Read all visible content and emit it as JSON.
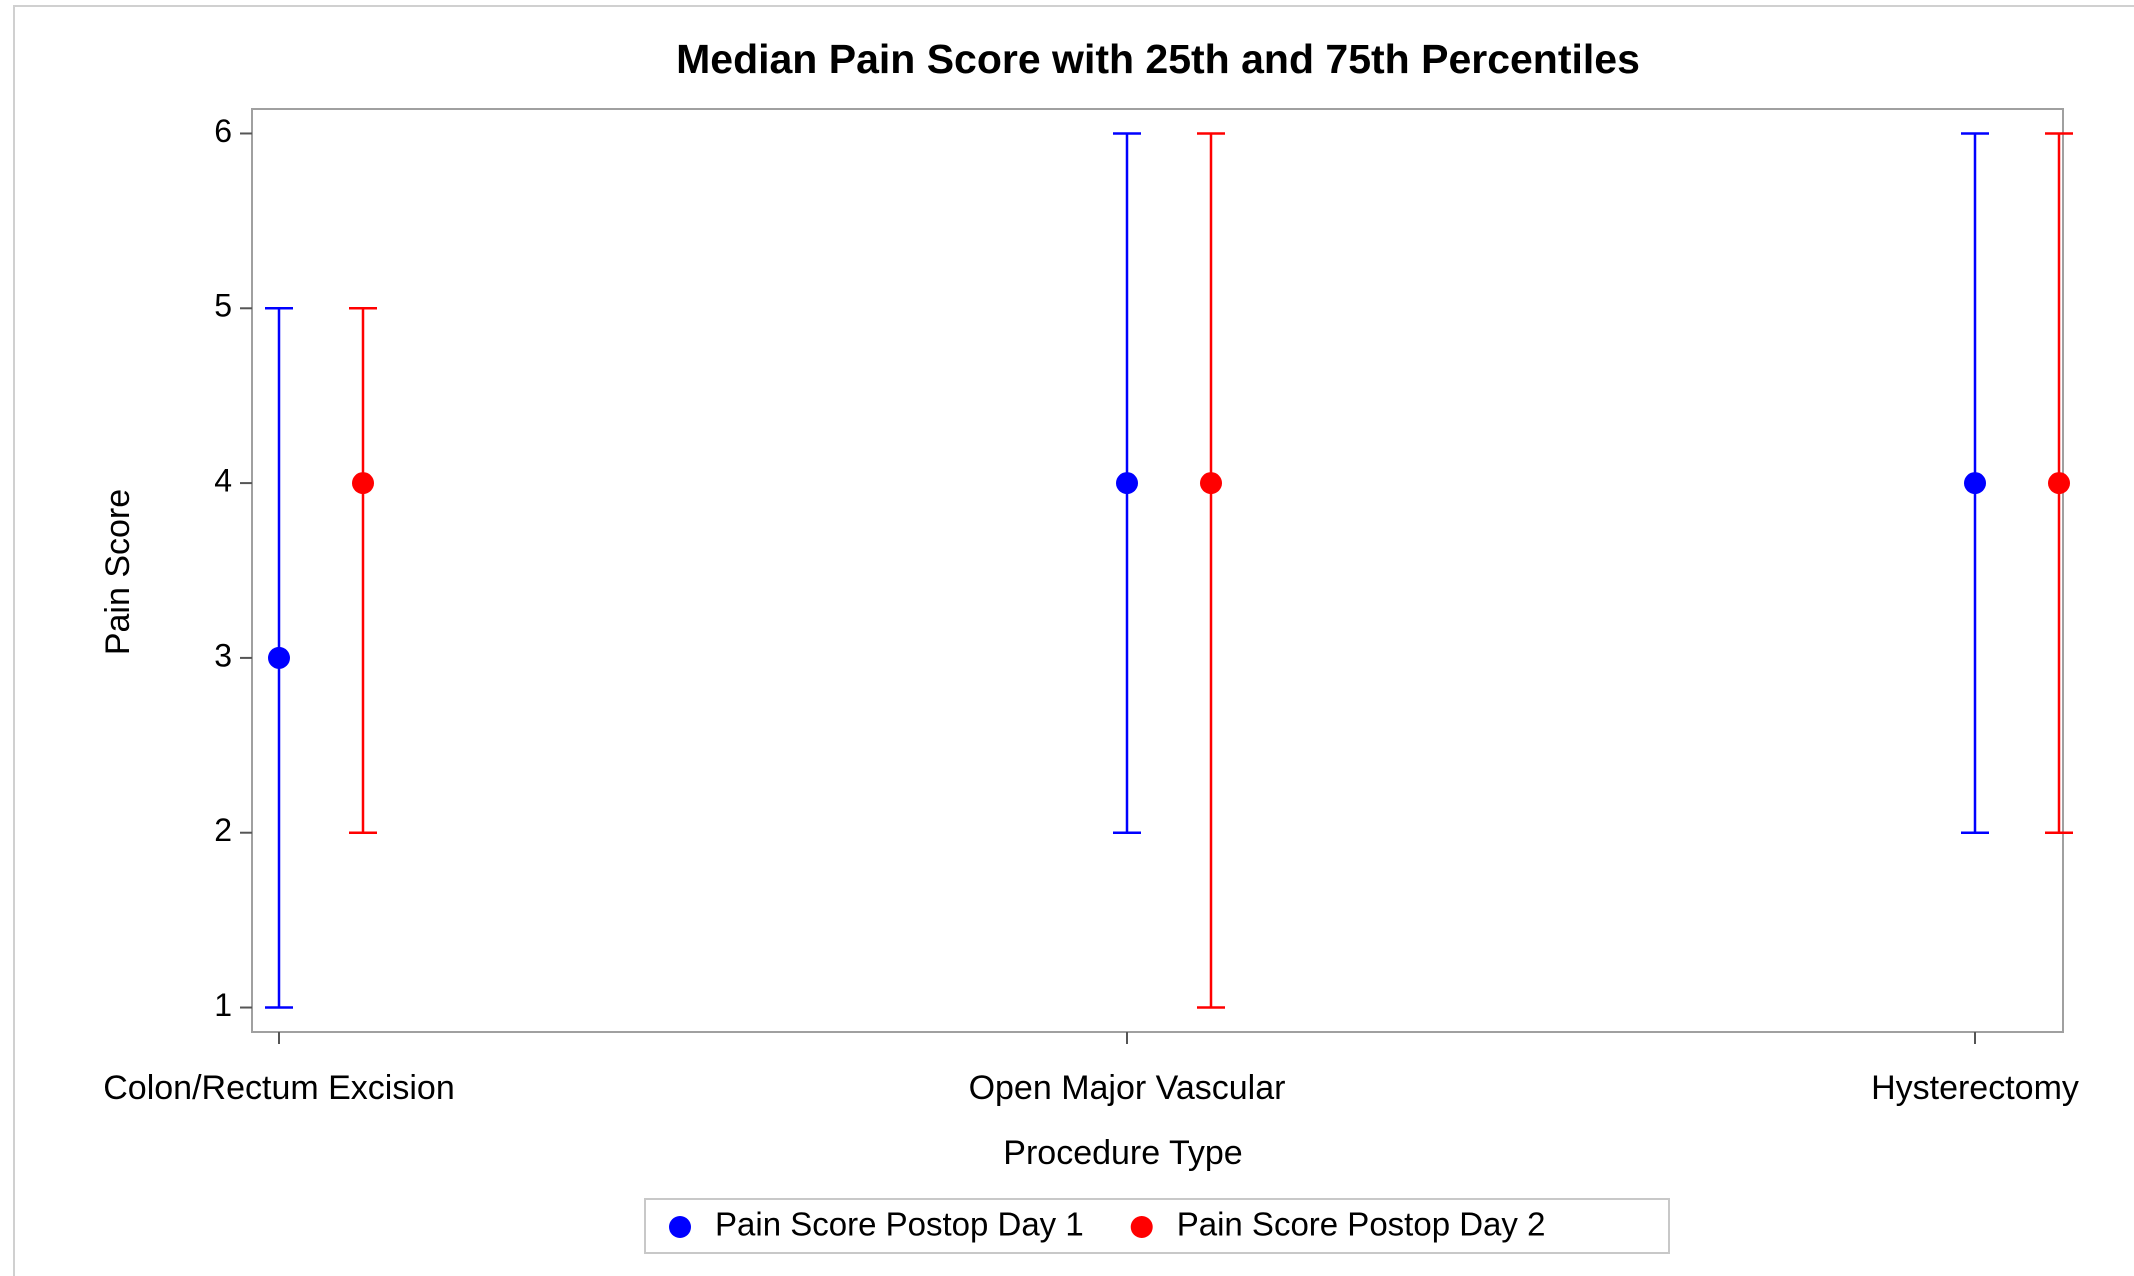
{
  "chart_data": {
    "type": "dot-errorbar",
    "title": "Median Pain Score with 25th and 75th Percentiles",
    "xlabel": "Procedure Type",
    "ylabel": "Pain Score",
    "categories": [
      "Colon/Rectum Excision",
      "Open Major Vascular",
      "Hysterectomy"
    ],
    "series": [
      {
        "name": "Pain Score Postop Day 1",
        "color": "#0000ff",
        "values": [
          3,
          4,
          4
        ],
        "q1": [
          1,
          2,
          2
        ],
        "q3": [
          5,
          6,
          6
        ]
      },
      {
        "name": "Pain Score Postop Day 2",
        "color": "#ff0000",
        "values": [
          4,
          4,
          4
        ],
        "q1": [
          2,
          1,
          2
        ],
        "q3": [
          5,
          6,
          6
        ]
      }
    ],
    "ylim": [
      0.86,
      6.14
    ],
    "yticks": [
      1,
      2,
      3,
      4,
      5,
      6
    ]
  }
}
